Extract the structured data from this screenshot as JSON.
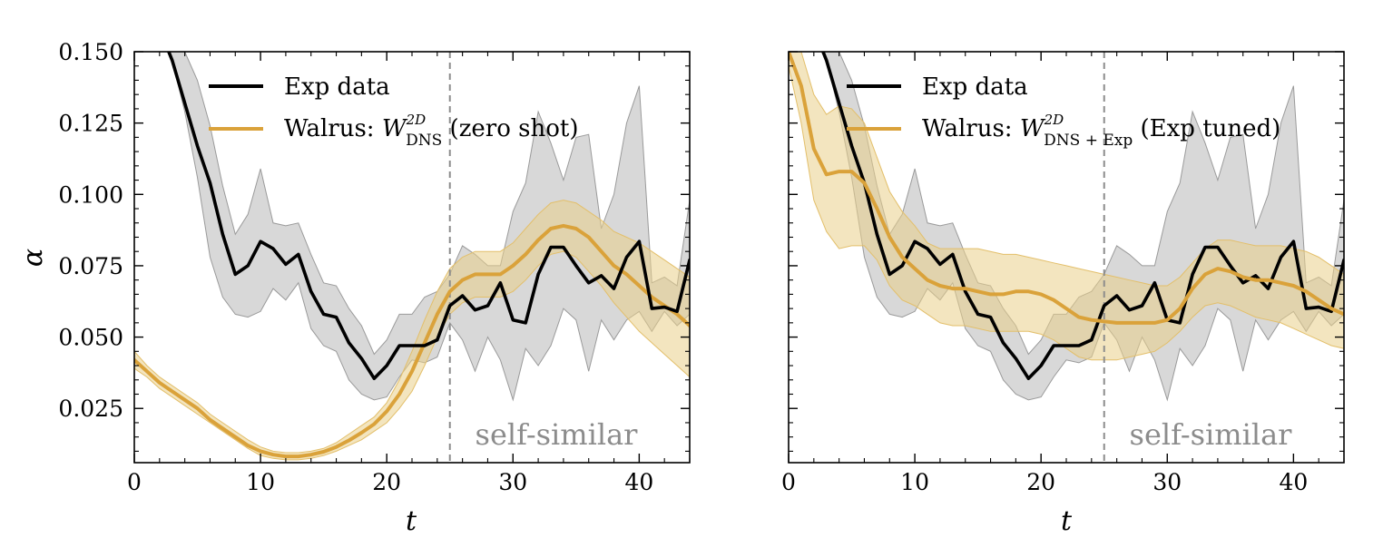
{
  "colors": {
    "exp": "#000000",
    "walrus": "#DAA23A",
    "walrus_band": "#EACF8A",
    "exp_band": "#A8A8A8",
    "vline": "#8C8C8C",
    "annotation": "#8C8C8C"
  },
  "chart_data": [
    {
      "type": "line",
      "xlabel": "t",
      "ylabel": "α",
      "xlim": [
        0,
        44
      ],
      "ylim": [
        0.006,
        0.15
      ],
      "xticks": [
        0,
        10,
        20,
        30,
        40
      ],
      "xtick_labels": [
        "0",
        "10",
        "20",
        "30",
        "40"
      ],
      "yticks": [
        0.025,
        0.05,
        0.075,
        0.1,
        0.125,
        0.15
      ],
      "ytick_labels": [
        "0.025",
        "0.050",
        "0.075",
        "0.100",
        "0.125",
        "0.150"
      ],
      "show_ytick_labels": true,
      "vline_x": 25,
      "annotation": "self-similar",
      "legend": {
        "placement": "top-left",
        "exp_label": "Exp data",
        "walrus_prefix": "Walrus: ",
        "walrus_symbol": "W",
        "walrus_superscript": "2D",
        "walrus_subscript": "DNS",
        "walrus_suffix": " (zero shot)"
      },
      "series": [
        {
          "name": "Exp data",
          "x": [
            2,
            3,
            4,
            5,
            6,
            7,
            8,
            9,
            10,
            11,
            12,
            13,
            14,
            15,
            16,
            17,
            18,
            19,
            20,
            21,
            22,
            23,
            24,
            25,
            26,
            27,
            28,
            29,
            30,
            31,
            32,
            33,
            34,
            35,
            36,
            37,
            38,
            39,
            40,
            41,
            42,
            43,
            44
          ],
          "y": [
            0.158,
            0.147,
            0.132,
            0.117,
            0.104,
            0.086,
            0.072,
            0.075,
            0.0835,
            0.081,
            0.0755,
            0.079,
            0.066,
            0.058,
            0.057,
            0.048,
            0.0425,
            0.0355,
            0.04,
            0.047,
            0.047,
            0.047,
            0.049,
            0.061,
            0.0645,
            0.0595,
            0.061,
            0.069,
            0.056,
            0.055,
            0.072,
            0.0815,
            0.0815,
            0.075,
            0.069,
            0.0715,
            0.067,
            0.078,
            0.0835,
            0.06,
            0.0605,
            0.059,
            0.077
          ],
          "lower": [
            0.158,
            0.147,
            0.129,
            0.106,
            0.078,
            0.064,
            0.058,
            0.057,
            0.059,
            0.067,
            0.063,
            0.069,
            0.053,
            0.047,
            0.045,
            0.035,
            0.03,
            0.028,
            0.029,
            0.036,
            0.042,
            0.041,
            0.043,
            0.055,
            0.049,
            0.038,
            0.05,
            0.042,
            0.028,
            0.046,
            0.04,
            0.047,
            0.06,
            0.056,
            0.038,
            0.056,
            0.049,
            0.056,
            0.059,
            0.052,
            0.059,
            0.054,
            0.058
          ],
          "upper": [
            0.158,
            0.152,
            0.15,
            0.14,
            0.124,
            0.103,
            0.086,
            0.093,
            0.109,
            0.09,
            0.089,
            0.09,
            0.079,
            0.069,
            0.068,
            0.06,
            0.054,
            0.044,
            0.049,
            0.058,
            0.058,
            0.064,
            0.066,
            0.072,
            0.082,
            0.079,
            0.075,
            0.075,
            0.094,
            0.104,
            0.129,
            0.118,
            0.105,
            0.12,
            0.121,
            0.088,
            0.1,
            0.125,
            0.138,
            0.069,
            0.071,
            0.068,
            0.098
          ]
        },
        {
          "name": "Walrus (zero shot)",
          "x": [
            0,
            1,
            2,
            3,
            4,
            5,
            6,
            7,
            8,
            9,
            10,
            11,
            12,
            13,
            14,
            15,
            16,
            17,
            18,
            19,
            20,
            21,
            22,
            23,
            24,
            25,
            26,
            27,
            28,
            29,
            30,
            31,
            32,
            33,
            34,
            35,
            36,
            37,
            38,
            39,
            40,
            41,
            42,
            43,
            44
          ],
          "y": [
            0.042,
            0.038,
            0.034,
            0.031,
            0.028,
            0.025,
            0.021,
            0.018,
            0.015,
            0.012,
            0.01,
            0.0088,
            0.0082,
            0.0082,
            0.0088,
            0.0098,
            0.0115,
            0.0138,
            0.0165,
            0.0195,
            0.024,
            0.03,
            0.038,
            0.048,
            0.058,
            0.066,
            0.07,
            0.072,
            0.072,
            0.072,
            0.075,
            0.079,
            0.084,
            0.088,
            0.089,
            0.088,
            0.085,
            0.08,
            0.075,
            0.072,
            0.068,
            0.064,
            0.061,
            0.058,
            0.054
          ],
          "lower": [
            0.039,
            0.036,
            0.032,
            0.029,
            0.026,
            0.023,
            0.02,
            0.017,
            0.014,
            0.011,
            0.0085,
            0.0075,
            0.007,
            0.007,
            0.0075,
            0.0085,
            0.01,
            0.012,
            0.014,
            0.017,
            0.02,
            0.025,
            0.031,
            0.04,
            0.05,
            0.058,
            0.062,
            0.064,
            0.064,
            0.064,
            0.066,
            0.07,
            0.075,
            0.079,
            0.08,
            0.078,
            0.073,
            0.068,
            0.062,
            0.057,
            0.052,
            0.048,
            0.044,
            0.04,
            0.036
          ],
          "upper": [
            0.045,
            0.04,
            0.036,
            0.033,
            0.03,
            0.027,
            0.023,
            0.02,
            0.017,
            0.014,
            0.0115,
            0.01,
            0.0095,
            0.0095,
            0.01,
            0.011,
            0.013,
            0.016,
            0.019,
            0.022,
            0.027,
            0.035,
            0.045,
            0.056,
            0.066,
            0.074,
            0.078,
            0.08,
            0.08,
            0.08,
            0.083,
            0.088,
            0.093,
            0.097,
            0.098,
            0.097,
            0.094,
            0.091,
            0.087,
            0.085,
            0.083,
            0.08,
            0.077,
            0.074,
            0.071
          ]
        }
      ]
    },
    {
      "type": "line",
      "xlabel": "t",
      "ylabel": "",
      "xlim": [
        0,
        44
      ],
      "ylim": [
        0.006,
        0.15
      ],
      "xticks": [
        0,
        10,
        20,
        30,
        40
      ],
      "xtick_labels": [
        "0",
        "10",
        "20",
        "30",
        "40"
      ],
      "yticks": [
        0.025,
        0.05,
        0.075,
        0.1,
        0.125,
        0.15
      ],
      "ytick_labels": [
        "",
        "",
        "",
        "",
        "",
        ""
      ],
      "show_ytick_labels": false,
      "vline_x": 25,
      "annotation": "self-similar",
      "legend": {
        "placement": "top-left",
        "exp_label": "Exp data",
        "walrus_prefix": "Walrus: ",
        "walrus_symbol": "W",
        "walrus_superscript": "2D",
        "walrus_subscript": "DNS + Exp",
        "walrus_suffix": " (Exp tuned)"
      },
      "series": [
        {
          "name": "Exp data",
          "x": [
            2,
            3,
            4,
            5,
            6,
            7,
            8,
            9,
            10,
            11,
            12,
            13,
            14,
            15,
            16,
            17,
            18,
            19,
            20,
            21,
            22,
            23,
            24,
            25,
            26,
            27,
            28,
            29,
            30,
            31,
            32,
            33,
            34,
            35,
            36,
            37,
            38,
            39,
            40,
            41,
            42,
            43,
            44
          ],
          "y": [
            0.158,
            0.147,
            0.132,
            0.117,
            0.104,
            0.086,
            0.072,
            0.075,
            0.0835,
            0.081,
            0.0755,
            0.079,
            0.066,
            0.058,
            0.057,
            0.048,
            0.0425,
            0.0355,
            0.04,
            0.047,
            0.047,
            0.047,
            0.049,
            0.061,
            0.0645,
            0.0595,
            0.061,
            0.069,
            0.056,
            0.055,
            0.072,
            0.0815,
            0.0815,
            0.075,
            0.069,
            0.0715,
            0.067,
            0.078,
            0.0835,
            0.06,
            0.0605,
            0.059,
            0.077
          ],
          "lower": [
            0.158,
            0.147,
            0.129,
            0.106,
            0.078,
            0.064,
            0.058,
            0.057,
            0.059,
            0.067,
            0.063,
            0.069,
            0.053,
            0.047,
            0.045,
            0.035,
            0.03,
            0.028,
            0.029,
            0.036,
            0.042,
            0.041,
            0.043,
            0.055,
            0.049,
            0.038,
            0.05,
            0.042,
            0.028,
            0.046,
            0.04,
            0.047,
            0.06,
            0.056,
            0.038,
            0.056,
            0.049,
            0.056,
            0.059,
            0.052,
            0.059,
            0.054,
            0.058
          ],
          "upper": [
            0.158,
            0.152,
            0.15,
            0.14,
            0.124,
            0.103,
            0.086,
            0.093,
            0.109,
            0.09,
            0.089,
            0.09,
            0.079,
            0.069,
            0.068,
            0.06,
            0.054,
            0.044,
            0.049,
            0.058,
            0.058,
            0.064,
            0.066,
            0.072,
            0.082,
            0.079,
            0.075,
            0.075,
            0.094,
            0.104,
            0.129,
            0.118,
            0.105,
            0.12,
            0.121,
            0.088,
            0.1,
            0.125,
            0.138,
            0.069,
            0.071,
            0.068,
            0.098
          ]
        },
        {
          "name": "Walrus (Exp tuned)",
          "x": [
            0,
            1,
            2,
            3,
            4,
            5,
            6,
            7,
            8,
            9,
            10,
            11,
            12,
            13,
            14,
            15,
            16,
            17,
            18,
            19,
            20,
            21,
            22,
            23,
            24,
            25,
            26,
            27,
            28,
            29,
            30,
            31,
            32,
            33,
            34,
            35,
            36,
            37,
            38,
            39,
            40,
            41,
            42,
            43,
            44
          ],
          "y": [
            0.15,
            0.138,
            0.116,
            0.107,
            0.108,
            0.108,
            0.104,
            0.095,
            0.085,
            0.078,
            0.074,
            0.07,
            0.068,
            0.067,
            0.067,
            0.066,
            0.065,
            0.065,
            0.066,
            0.066,
            0.065,
            0.063,
            0.06,
            0.057,
            0.056,
            0.0555,
            0.055,
            0.055,
            0.055,
            0.055,
            0.056,
            0.06,
            0.067,
            0.072,
            0.074,
            0.073,
            0.071,
            0.07,
            0.07,
            0.069,
            0.068,
            0.066,
            0.063,
            0.06,
            0.058
          ],
          "lower": [
            0.145,
            0.125,
            0.098,
            0.087,
            0.081,
            0.082,
            0.082,
            0.077,
            0.068,
            0.063,
            0.061,
            0.058,
            0.055,
            0.054,
            0.054,
            0.053,
            0.052,
            0.052,
            0.052,
            0.052,
            0.051,
            0.049,
            0.046,
            0.043,
            0.042,
            0.042,
            0.042,
            0.043,
            0.044,
            0.045,
            0.048,
            0.052,
            0.057,
            0.061,
            0.062,
            0.061,
            0.059,
            0.057,
            0.056,
            0.055,
            0.053,
            0.051,
            0.049,
            0.047,
            0.046
          ],
          "upper": [
            0.155,
            0.15,
            0.135,
            0.128,
            0.131,
            0.13,
            0.125,
            0.113,
            0.101,
            0.094,
            0.089,
            0.083,
            0.081,
            0.081,
            0.081,
            0.081,
            0.08,
            0.079,
            0.079,
            0.078,
            0.077,
            0.076,
            0.075,
            0.074,
            0.073,
            0.072,
            0.071,
            0.07,
            0.069,
            0.068,
            0.068,
            0.071,
            0.076,
            0.081,
            0.084,
            0.084,
            0.083,
            0.082,
            0.082,
            0.082,
            0.081,
            0.08,
            0.078,
            0.075,
            0.072
          ]
        }
      ]
    }
  ]
}
